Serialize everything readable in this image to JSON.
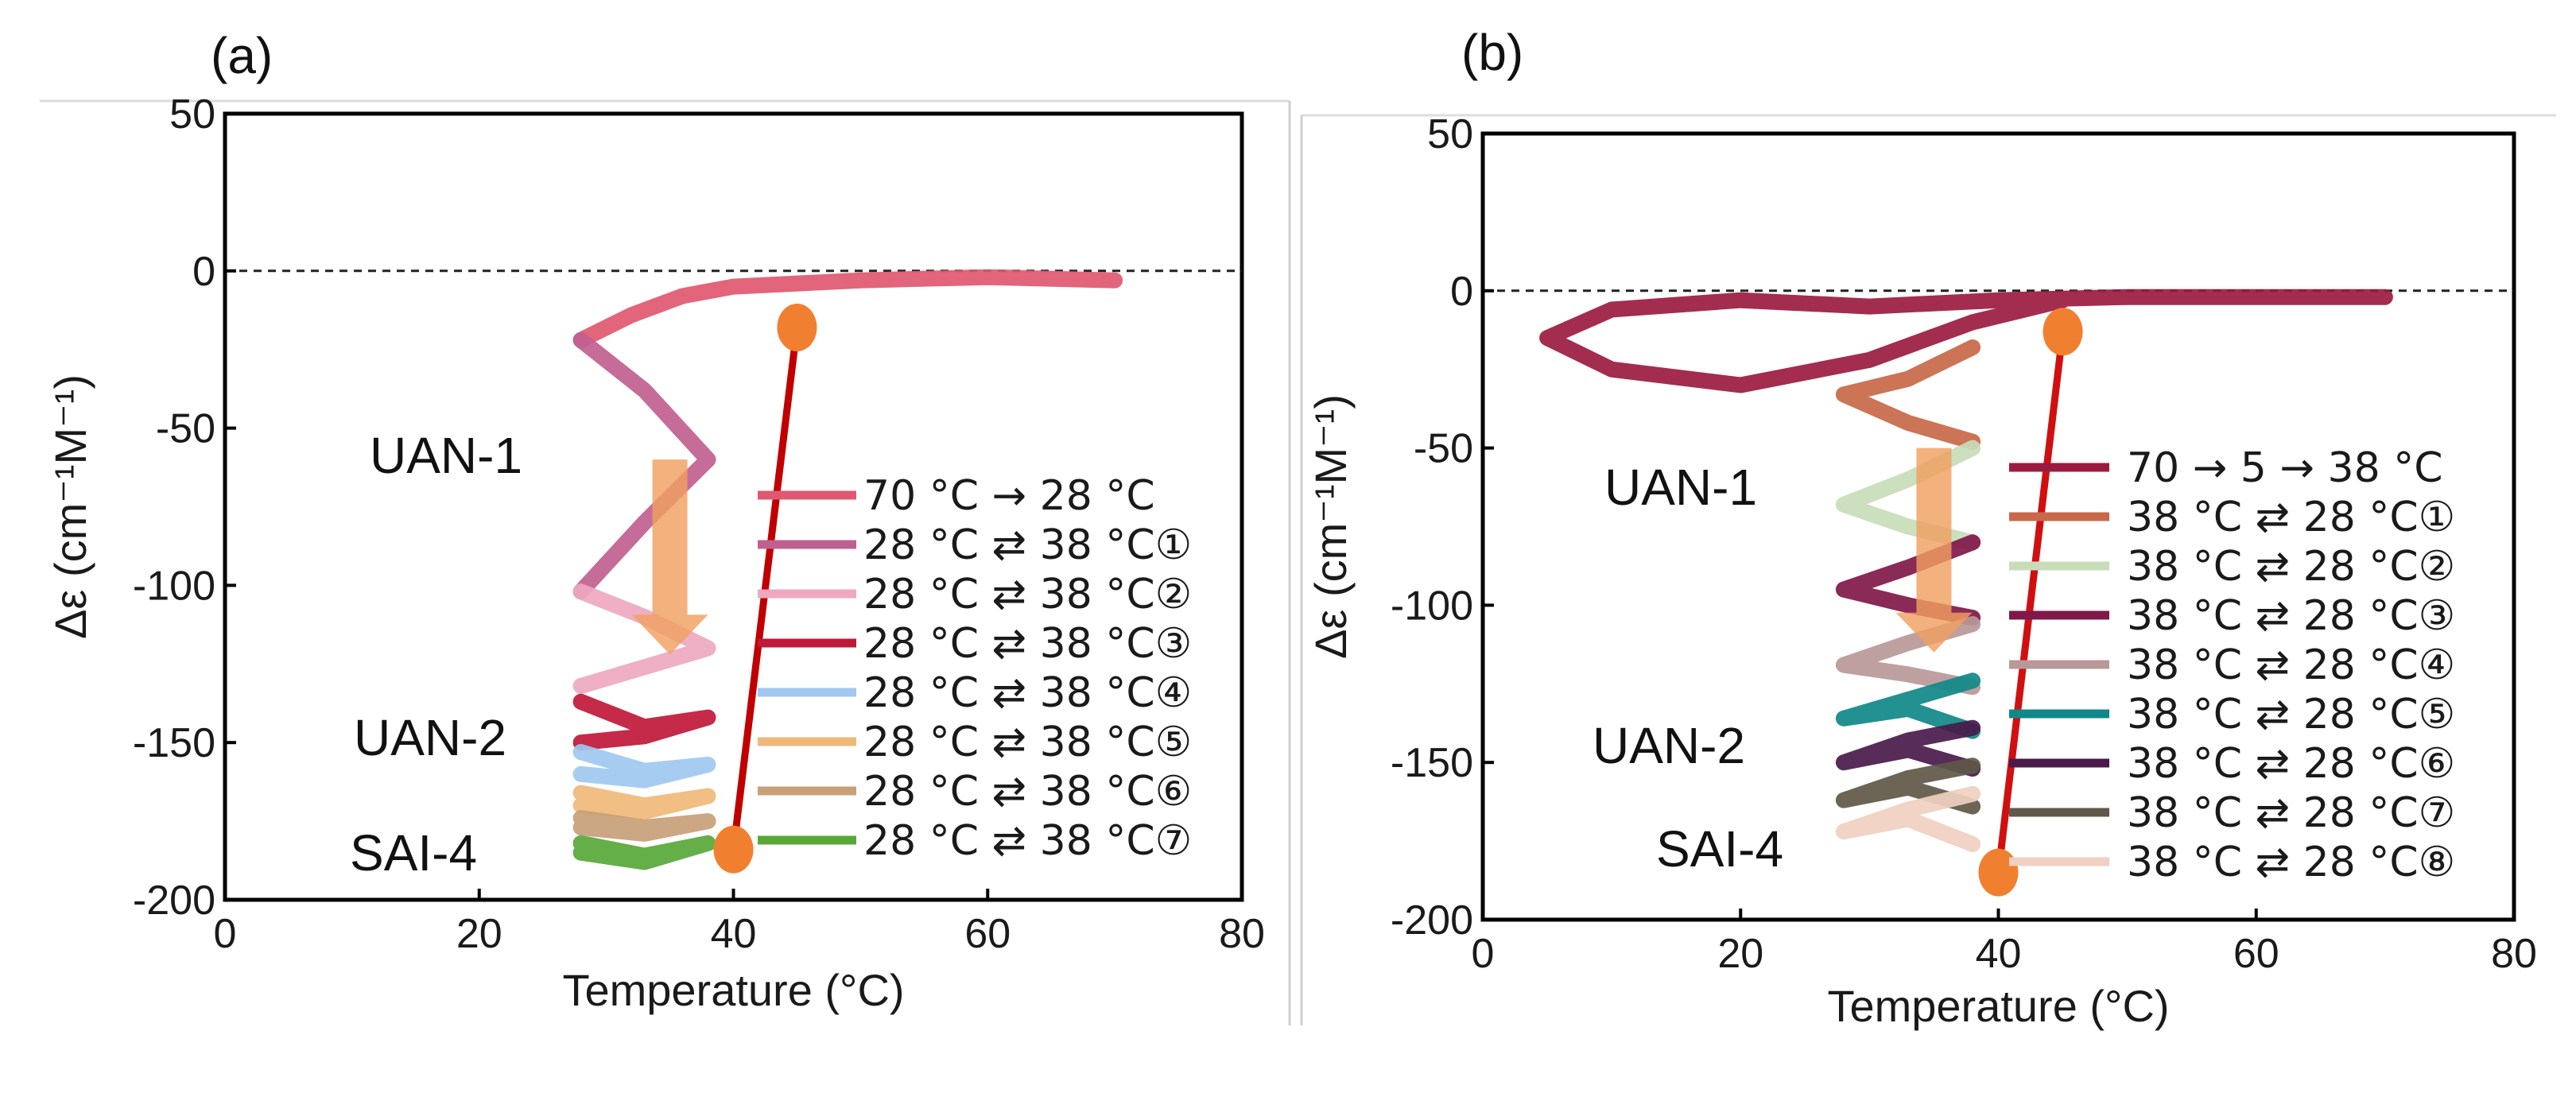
{
  "chart_data": [
    {
      "panel_label": "(a)",
      "type": "line",
      "xlabel": "Temperature (°C)",
      "ylabel": "Δε (cm⁻¹M⁻¹)",
      "xlim": [
        0,
        80
      ],
      "ylim": [
        -200,
        50
      ],
      "xticks": [
        0,
        20,
        40,
        60,
        80
      ],
      "yticks": [
        50,
        0,
        -50,
        -100,
        -150,
        -200
      ],
      "reference_line_y": 0,
      "annotations": [
        {
          "text": "UAN-1",
          "x": 18,
          "y": -60
        },
        {
          "text": "UAN-2",
          "x": 17,
          "y": -149
        },
        {
          "text": "SAI-4",
          "x": 16,
          "y": -184
        }
      ],
      "arrow": {
        "color": "#f0a060",
        "from": [
          35,
          -60
        ],
        "to": [
          35,
          -122
        ]
      },
      "trend_line": {
        "color": "#c00000",
        "from": [
          45,
          -18
        ],
        "to": [
          40,
          -184
        ],
        "endpoint_color": "#f08030"
      },
      "series": [
        {
          "name": "70 °C → 28 °C",
          "color": "#e05870",
          "x": [
            70,
            60,
            50,
            40,
            36,
            32,
            28
          ],
          "y": [
            -3,
            -2,
            -3,
            -5,
            -8,
            -14,
            -22
          ]
        },
        {
          "name": "28 °C ⇄ 38 °C①",
          "color": "#c06090",
          "x": [
            28,
            33,
            38,
            33,
            28
          ],
          "y": [
            -22,
            -38,
            -60,
            -80,
            -102
          ]
        },
        {
          "name": "28 °C ⇄ 38 °C②",
          "color": "#eea8c0",
          "x": [
            28,
            33,
            38,
            33,
            28
          ],
          "y": [
            -102,
            -110,
            -120,
            -126,
            -132
          ]
        },
        {
          "name": "28 °C ⇄ 38 °C③",
          "color": "#c01838",
          "x": [
            28,
            33,
            38,
            33,
            28
          ],
          "y": [
            -137,
            -145,
            -142,
            -148,
            -150
          ]
        },
        {
          "name": "28 °C ⇄ 38 °C④",
          "color": "#a0c8f0",
          "x": [
            28,
            33,
            38,
            33,
            28
          ],
          "y": [
            -153,
            -159,
            -157,
            -162,
            -160
          ]
        },
        {
          "name": "28 °C ⇄ 38 °C⑤",
          "color": "#f0b878",
          "x": [
            28,
            33,
            38,
            33,
            28
          ],
          "y": [
            -166,
            -170,
            -167,
            -172,
            -170
          ]
        },
        {
          "name": "28 °C ⇄ 38 °C⑥",
          "color": "#c8a078",
          "x": [
            28,
            33,
            38,
            33,
            28
          ],
          "y": [
            -174,
            -177,
            -175,
            -179,
            -177
          ]
        },
        {
          "name": "28 °C ⇄ 38 °C⑦",
          "color": "#58a838",
          "x": [
            28,
            33,
            38,
            33,
            28
          ],
          "y": [
            -182,
            -186,
            -182,
            -188,
            -185
          ]
        }
      ]
    },
    {
      "panel_label": "(b)",
      "type": "line",
      "xlabel": "Temperature (°C)",
      "ylabel": "Δε (cm⁻¹M⁻¹)",
      "xlim": [
        0,
        80
      ],
      "ylim": [
        -200,
        50
      ],
      "xticks": [
        0,
        20,
        40,
        60,
        80
      ],
      "yticks": [
        50,
        0,
        -50,
        -100,
        -150,
        -200
      ],
      "reference_line_y": 0,
      "annotations": [
        {
          "text": "UAN-1",
          "x": 20,
          "y": -63
        },
        {
          "text": "UAN-2",
          "x": 19,
          "y": -145
        },
        {
          "text": "SAI-4",
          "x": 19,
          "y": -180
        }
      ],
      "arrow": {
        "color": "#f0a060",
        "from": [
          35,
          -50
        ],
        "to": [
          35,
          -115
        ]
      },
      "trend_line": {
        "color": "#d01010",
        "from": [
          45,
          -13
        ],
        "to": [
          40,
          -185
        ],
        "endpoint_color": "#f08030"
      },
      "series": [
        {
          "name": "70 → 5 → 38 °C",
          "color": "#9b1b40",
          "x": [
            70,
            60,
            50,
            40,
            30,
            20,
            10,
            5,
            10,
            20,
            30,
            38,
            45
          ],
          "y": [
            -2,
            -2,
            -2,
            -3,
            -5,
            -3,
            -6,
            -15,
            -25,
            -30,
            -22,
            -10,
            -3
          ]
        },
        {
          "name": "38 °C ⇄ 28 °C①",
          "color": "#c86848",
          "x": [
            38,
            33,
            28,
            33,
            38
          ],
          "y": [
            -18,
            -28,
            -33,
            -42,
            -48
          ]
        },
        {
          "name": "38 °C ⇄ 28 °C②",
          "color": "#c8dcb8",
          "x": [
            38,
            33,
            28,
            33,
            38
          ],
          "y": [
            -50,
            -60,
            -68,
            -75,
            -80
          ]
        },
        {
          "name": "38 °C ⇄ 28 °C③",
          "color": "#801848",
          "x": [
            38,
            33,
            28,
            33,
            38
          ],
          "y": [
            -80,
            -88,
            -95,
            -100,
            -104
          ]
        },
        {
          "name": "38 °C ⇄ 28 °C④",
          "color": "#b89898",
          "x": [
            38,
            33,
            28,
            33,
            38
          ],
          "y": [
            -106,
            -112,
            -119,
            -122,
            -126
          ]
        },
        {
          "name": "38 °C ⇄ 28 °C⑤",
          "color": "#108888",
          "x": [
            38,
            33,
            28,
            33,
            38
          ],
          "y": [
            -124,
            -130,
            -136,
            -133,
            -140
          ]
        },
        {
          "name": "38 °C ⇄ 28 °C⑥",
          "color": "#4a1a4a",
          "x": [
            38,
            33,
            28,
            33,
            38
          ],
          "y": [
            -139,
            -143,
            -150,
            -146,
            -152
          ]
        },
        {
          "name": "38 °C ⇄ 28 °C⑦",
          "color": "#605848",
          "x": [
            38,
            33,
            28,
            33,
            38
          ],
          "y": [
            -151,
            -155,
            -162,
            -158,
            -164
          ]
        },
        {
          "name": "38 °C ⇄ 28 °C⑧",
          "color": "#f0d0c0",
          "x": [
            38,
            33,
            28,
            33,
            38
          ],
          "y": [
            -160,
            -165,
            -172,
            -168,
            -176
          ]
        }
      ]
    }
  ]
}
